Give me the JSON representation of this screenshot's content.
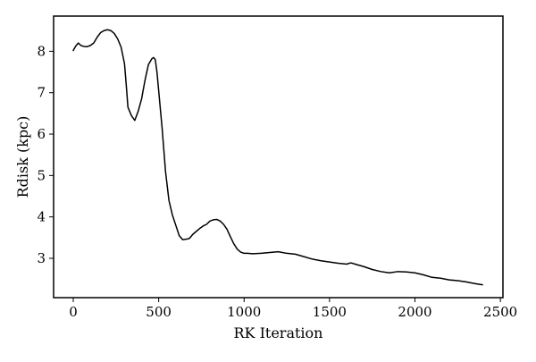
{
  "chart_data": {
    "type": "line",
    "title": "",
    "xlabel": "RK Iteration",
    "ylabel": "Rdisk (kpc)",
    "xlim": [
      -115,
      2515
    ],
    "ylim": [
      2.05,
      8.85
    ],
    "xticks": [
      0,
      500,
      1000,
      1500,
      2000,
      2500
    ],
    "yticks": [
      3,
      4,
      5,
      6,
      7,
      8
    ],
    "x_tick_labels": [
      "0",
      "500",
      "1000",
      "1500",
      "2000",
      "2500"
    ],
    "y_tick_labels": [
      "3",
      "4",
      "5",
      "6",
      "7",
      "8"
    ],
    "grid": false,
    "legend": "none",
    "line_color": "#000000",
    "series": [
      {
        "x": [
          0,
          15,
          30,
          45,
          60,
          80,
          100,
          120,
          140,
          160,
          180,
          200,
          220,
          240,
          260,
          280,
          300,
          310,
          320,
          340,
          360,
          380,
          400,
          420,
          440,
          460,
          470,
          480,
          490,
          500,
          510,
          520,
          540,
          560,
          580,
          600,
          620,
          640,
          660,
          680,
          700,
          720,
          740,
          760,
          780,
          800,
          820,
          840,
          860,
          880,
          900,
          920,
          940,
          960,
          980,
          1000,
          1020,
          1050,
          1100,
          1150,
          1200,
          1250,
          1300,
          1350,
          1400,
          1450,
          1500,
          1550,
          1600,
          1625,
          1650,
          1700,
          1750,
          1800,
          1850,
          1900,
          1950,
          2000,
          2050,
          2100,
          2150,
          2200,
          2250,
          2300,
          2350,
          2395
        ],
        "y": [
          8.02,
          8.13,
          8.2,
          8.14,
          8.12,
          8.11,
          8.14,
          8.2,
          8.34,
          8.45,
          8.5,
          8.52,
          8.5,
          8.43,
          8.3,
          8.1,
          7.7,
          7.2,
          6.65,
          6.45,
          6.33,
          6.55,
          6.85,
          7.3,
          7.68,
          7.82,
          7.85,
          7.8,
          7.5,
          7.05,
          6.6,
          6.15,
          5.1,
          4.4,
          4.05,
          3.8,
          3.55,
          3.45,
          3.46,
          3.48,
          3.58,
          3.65,
          3.72,
          3.78,
          3.82,
          3.9,
          3.93,
          3.94,
          3.9,
          3.82,
          3.7,
          3.52,
          3.35,
          3.22,
          3.15,
          3.12,
          3.12,
          3.11,
          3.12,
          3.14,
          3.16,
          3.12,
          3.1,
          3.04,
          2.98,
          2.94,
          2.91,
          2.88,
          2.86,
          2.89,
          2.86,
          2.8,
          2.73,
          2.68,
          2.65,
          2.68,
          2.67,
          2.65,
          2.6,
          2.54,
          2.52,
          2.48,
          2.46,
          2.43,
          2.39,
          2.36
        ]
      }
    ]
  }
}
